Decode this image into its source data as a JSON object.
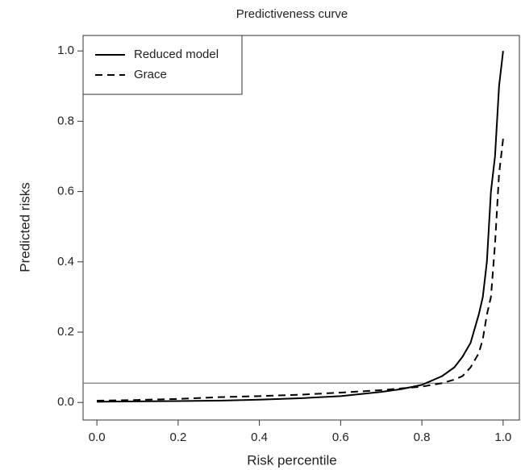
{
  "chart_data": {
    "type": "line",
    "title": "Predictiveness curve",
    "x_label": "Risk percentile",
    "y_label": "Predicted risks",
    "x": [
      0,
      0.1,
      0.2,
      0.3,
      0.4,
      0.5,
      0.6,
      0.7,
      0.75,
      0.8,
      0.85,
      0.88,
      0.9,
      0.92,
      0.94,
      0.95,
      0.96,
      0.97,
      0.98,
      0.99,
      1.0
    ],
    "series": [
      {
        "name": "Reduced model",
        "color": "#000000",
        "linestyle": "solid",
        "values": [
          0.002,
          0.003,
          0.004,
          0.005,
          0.008,
          0.012,
          0.018,
          0.03,
          0.038,
          0.05,
          0.075,
          0.1,
          0.13,
          0.17,
          0.25,
          0.3,
          0.4,
          0.6,
          0.7,
          0.9,
          1.0
        ]
      },
      {
        "name": "Grace",
        "color": "#000000",
        "linestyle": "dashed",
        "values": [
          0.005,
          0.007,
          0.01,
          0.015,
          0.018,
          0.022,
          0.028,
          0.035,
          0.04,
          0.045,
          0.055,
          0.065,
          0.075,
          0.1,
          0.14,
          0.18,
          0.25,
          0.3,
          0.45,
          0.65,
          0.75
        ]
      }
    ],
    "reference_line": 0.055,
    "xlim": [
      -0.034,
      1.042
    ],
    "ylim": [
      -0.05,
      1.044
    ],
    "xticks": [
      {
        "value": 0,
        "label": "0.0"
      },
      0.2,
      0.4,
      0.6,
      0.8,
      {
        "value": 1,
        "label": "1.0"
      }
    ],
    "yticks": [
      {
        "value": 0,
        "label": "0.0"
      },
      0.2,
      0.4,
      0.6,
      0.8,
      {
        "value": 1,
        "label": "1.0"
      }
    ],
    "legend": "upper-left",
    "grid": false
  }
}
